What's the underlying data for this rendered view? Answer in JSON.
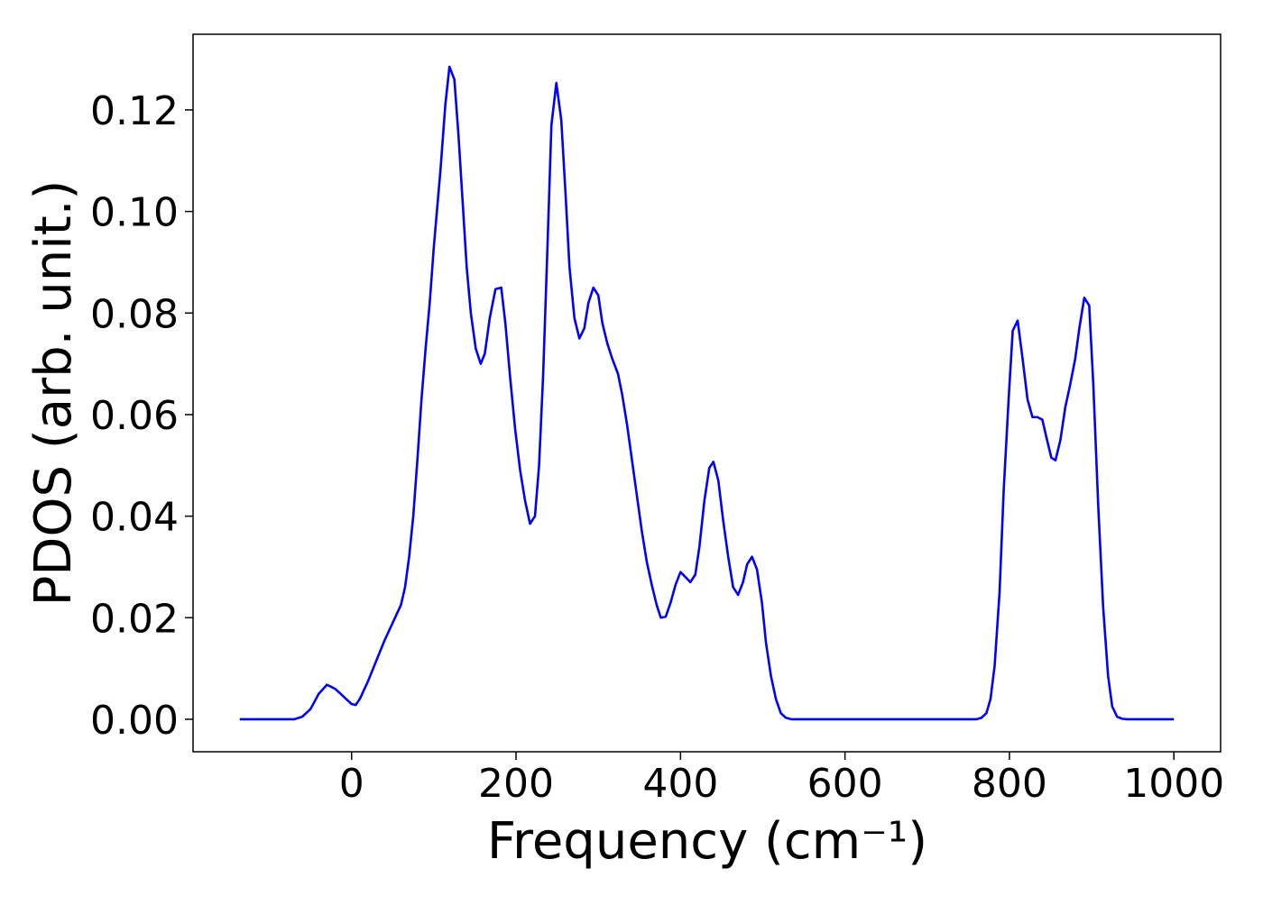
{
  "chart_data": {
    "type": "line",
    "xlabel": "Frequency (cm⁻¹)",
    "ylabel": "PDOS (arb. unit.)",
    "color": "#0000ff",
    "xlim": [
      -192.8,
      1056.8
    ],
    "ylim": [
      -0.0064,
      0.1349
    ],
    "xticks": [
      0,
      200,
      400,
      600,
      800,
      1000
    ],
    "yticks": [
      {
        "value": 0,
        "label": "0.00"
      },
      0.02,
      0.04,
      0.06,
      0.08,
      {
        "value": 0.1,
        "label": "0.10"
      },
      0.12
    ],
    "x": [
      -136,
      -70,
      -60,
      -50,
      -40,
      -30,
      -20,
      -10,
      0,
      5,
      10,
      20,
      30,
      40,
      50,
      60,
      65,
      70,
      75,
      80,
      85,
      90,
      95,
      100,
      108,
      114,
      119,
      125,
      130,
      135,
      140,
      145,
      151,
      157,
      162,
      168,
      175,
      182,
      187,
      193,
      199,
      205,
      211,
      217,
      223,
      228,
      233,
      238,
      243,
      249,
      255,
      260,
      265,
      271,
      277,
      283,
      288,
      294,
      300,
      305,
      311,
      317,
      324,
      329,
      335,
      341,
      347,
      353,
      359,
      365,
      371,
      376,
      382,
      388,
      394,
      400,
      406,
      412,
      418,
      423,
      429,
      435,
      440,
      446,
      452,
      458,
      464,
      470,
      476,
      481,
      487,
      493,
      499,
      504,
      510,
      516,
      522,
      528,
      535,
      760,
      766,
      772,
      777,
      782,
      788,
      793,
      799,
      804,
      810,
      816,
      822,
      828,
      834,
      840,
      845,
      851,
      856,
      862,
      868,
      874,
      880,
      885,
      891,
      897,
      902,
      908,
      914,
      920,
      925,
      931,
      937,
      943,
      1000
    ],
    "values": [
      0,
      0,
      0.0005,
      0.002,
      0.005,
      0.0068,
      0.006,
      0.0045,
      0.003,
      0.0028,
      0.004,
      0.0075,
      0.0115,
      0.0155,
      0.019,
      0.0225,
      0.026,
      0.032,
      0.04,
      0.051,
      0.063,
      0.073,
      0.082,
      0.093,
      0.108,
      0.121,
      0.1285,
      0.126,
      0.115,
      0.102,
      0.089,
      0.08,
      0.073,
      0.07,
      0.072,
      0.079,
      0.0847,
      0.085,
      0.078,
      0.067,
      0.057,
      0.049,
      0.043,
      0.0385,
      0.04,
      0.05,
      0.068,
      0.092,
      0.117,
      0.1253,
      0.118,
      0.104,
      0.089,
      0.079,
      0.075,
      0.077,
      0.082,
      0.085,
      0.0835,
      0.078,
      0.074,
      0.071,
      0.068,
      0.064,
      0.058,
      0.051,
      0.044,
      0.037,
      0.031,
      0.0265,
      0.0225,
      0.02,
      0.0202,
      0.023,
      0.0265,
      0.029,
      0.028,
      0.027,
      0.0285,
      0.034,
      0.043,
      0.0495,
      0.0507,
      0.047,
      0.039,
      0.032,
      0.026,
      0.0245,
      0.027,
      0.0305,
      0.032,
      0.0295,
      0.023,
      0.015,
      0.0085,
      0.004,
      0.0012,
      0.0003,
      0,
      0,
      0.0003,
      0.0012,
      0.004,
      0.0105,
      0.025,
      0.045,
      0.063,
      0.0765,
      0.0785,
      0.071,
      0.063,
      0.0595,
      0.0595,
      0.059,
      0.0555,
      0.0515,
      0.051,
      0.055,
      0.0615,
      0.066,
      0.071,
      0.077,
      0.083,
      0.0815,
      0.066,
      0.042,
      0.022,
      0.0085,
      0.0025,
      0.0005,
      0.0001,
      0,
      0
    ]
  }
}
